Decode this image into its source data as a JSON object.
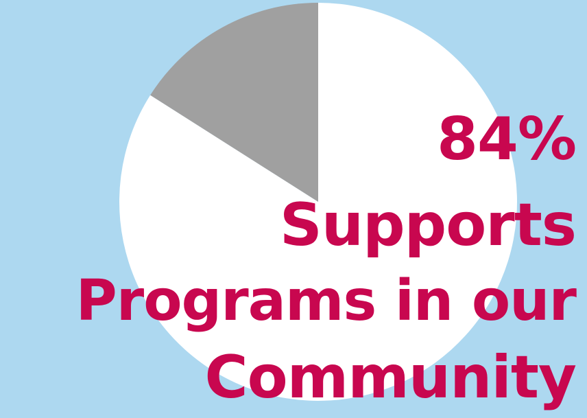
{
  "colors": {
    "background": "#ADD8F0",
    "accent": "#C8074F",
    "slice_main": "#FFFFFF",
    "slice_other": "#A0A0A0"
  },
  "headline": {
    "percent": "84%",
    "line1": "Supports",
    "line2": "Programs in our",
    "line3": "Community"
  },
  "chart_data": {
    "type": "pie",
    "title": "84% Supports Programs in our Community",
    "slices": [
      {
        "label": "",
        "value": 84,
        "color": "#FFFFFF"
      },
      {
        "label": "",
        "value": 16,
        "color": "#A0A0A0"
      }
    ]
  }
}
